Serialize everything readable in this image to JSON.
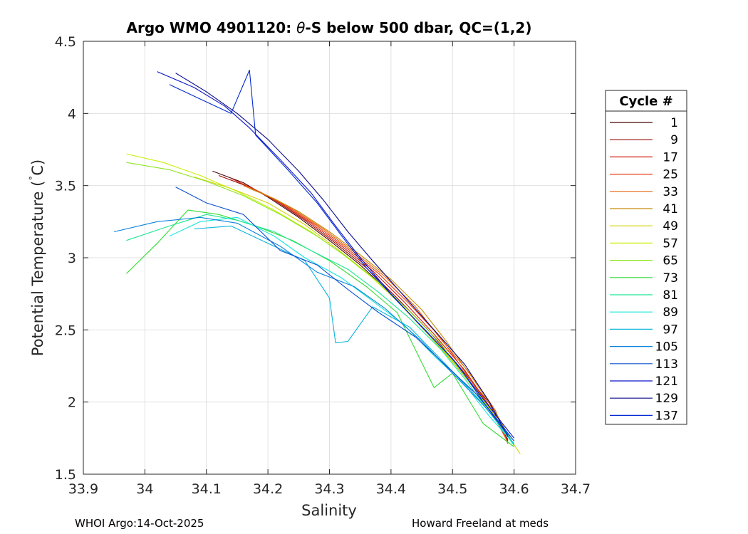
{
  "chart_data": {
    "type": "line",
    "title": "Argo WMO 4901120: θ-S below 500 dbar,  QC=(1,2)",
    "title_parts": {
      "prefix": "Argo WMO 4901120: ",
      "symbol": "θ",
      "suffix": "-S below 500 dbar,  QC=(1,2)"
    },
    "xlabel": "Salinity",
    "ylabel": "Potential Temperature (˚C)",
    "ylabel_parts": {
      "main": "Potential Temperature (",
      "degree": "˚",
      "unit": "C)"
    },
    "xlim": [
      33.9,
      34.7
    ],
    "ylim": [
      1.5,
      4.5
    ],
    "xticks": [
      33.9,
      34.0,
      34.1,
      34.2,
      34.3,
      34.4,
      34.5,
      34.6,
      34.7
    ],
    "xtick_labels": [
      "33.9",
      "34",
      "34.1",
      "34.2",
      "34.3",
      "34.4",
      "34.5",
      "34.6",
      "34.7"
    ],
    "yticks": [
      1.5,
      2.0,
      2.5,
      3.0,
      3.5,
      4.0,
      4.5
    ],
    "ytick_labels": [
      "1.5",
      "2",
      "2.5",
      "3",
      "3.5",
      "4",
      "4.5"
    ],
    "grid": true,
    "legend": {
      "title": "Cycle #",
      "placement": "outside-right",
      "entries": [
        {
          "label": "1",
          "color": "#4a0505"
        },
        {
          "label": "9",
          "color": "#9a0a0a"
        },
        {
          "label": "17",
          "color": "#d21c0c"
        },
        {
          "label": "25",
          "color": "#e83a0e"
        },
        {
          "label": "33",
          "color": "#e8640e"
        },
        {
          "label": "41",
          "color": "#c88c0e"
        },
        {
          "label": "49",
          "color": "#d2d20a"
        },
        {
          "label": "57",
          "color": "#c8f000"
        },
        {
          "label": "65",
          "color": "#8ce61e"
        },
        {
          "label": "73",
          "color": "#32dc32"
        },
        {
          "label": "81",
          "color": "#1ee696"
        },
        {
          "label": "89",
          "color": "#14e6dc"
        },
        {
          "label": "97",
          "color": "#0ab4dc"
        },
        {
          "label": "105",
          "color": "#0a82dc"
        },
        {
          "label": "113",
          "color": "#0a50d2"
        },
        {
          "label": "121",
          "color": "#0a14c8"
        },
        {
          "label": "129",
          "color": "#0a0a8c"
        },
        {
          "label": "137",
          "color": "#0028d2"
        }
      ]
    },
    "series": [
      {
        "name": "1",
        "color": "#4a0505",
        "points": [
          [
            34.11,
            3.6
          ],
          [
            34.16,
            3.52
          ],
          [
            34.2,
            3.42
          ],
          [
            34.25,
            3.28
          ],
          [
            34.3,
            3.12
          ],
          [
            34.35,
            2.95
          ],
          [
            34.4,
            2.75
          ],
          [
            34.45,
            2.52
          ],
          [
            34.5,
            2.28
          ],
          [
            34.55,
            2.02
          ],
          [
            34.59,
            1.74
          ]
        ]
      },
      {
        "name": "9",
        "color": "#9a0a0a",
        "points": [
          [
            34.12,
            3.57
          ],
          [
            34.17,
            3.49
          ],
          [
            34.21,
            3.4
          ],
          [
            34.26,
            3.26
          ],
          [
            34.31,
            3.1
          ],
          [
            34.36,
            2.93
          ],
          [
            34.41,
            2.72
          ],
          [
            34.46,
            2.5
          ],
          [
            34.51,
            2.25
          ],
          [
            34.56,
            1.99
          ],
          [
            34.59,
            1.73
          ]
        ]
      },
      {
        "name": "17",
        "color": "#d21c0c",
        "points": [
          [
            34.14,
            3.55
          ],
          [
            34.18,
            3.47
          ],
          [
            34.22,
            3.38
          ],
          [
            34.27,
            3.24
          ],
          [
            34.32,
            3.08
          ],
          [
            34.37,
            2.91
          ],
          [
            34.42,
            2.7
          ],
          [
            34.47,
            2.47
          ],
          [
            34.52,
            2.22
          ],
          [
            34.56,
            1.97
          ],
          [
            34.59,
            1.72
          ]
        ]
      },
      {
        "name": "25",
        "color": "#e83a0e",
        "points": [
          [
            34.15,
            3.53
          ],
          [
            34.19,
            3.45
          ],
          [
            34.23,
            3.36
          ],
          [
            34.28,
            3.22
          ],
          [
            34.33,
            3.06
          ],
          [
            34.38,
            2.89
          ],
          [
            34.43,
            2.68
          ],
          [
            34.48,
            2.45
          ],
          [
            34.52,
            2.21
          ],
          [
            34.56,
            1.96
          ],
          [
            34.59,
            1.72
          ]
        ]
      },
      {
        "name": "33",
        "color": "#e8640e",
        "points": [
          [
            34.16,
            3.5
          ],
          [
            34.2,
            3.43
          ],
          [
            34.24,
            3.34
          ],
          [
            34.29,
            3.2
          ],
          [
            34.34,
            3.04
          ],
          [
            34.39,
            2.87
          ],
          [
            34.44,
            2.66
          ],
          [
            34.48,
            2.44
          ],
          [
            34.53,
            2.19
          ],
          [
            34.57,
            1.94
          ],
          [
            34.59,
            1.71
          ]
        ]
      },
      {
        "name": "41",
        "color": "#c88c0e",
        "points": [
          [
            34.17,
            3.48
          ],
          [
            34.21,
            3.41
          ],
          [
            34.25,
            3.32
          ],
          [
            34.3,
            3.18
          ],
          [
            34.35,
            3.02
          ],
          [
            34.4,
            2.85
          ],
          [
            34.45,
            2.64
          ],
          [
            34.49,
            2.42
          ],
          [
            34.53,
            2.18
          ],
          [
            34.57,
            1.93
          ],
          [
            34.6,
            1.7
          ]
        ]
      },
      {
        "name": "49",
        "color": "#d2d20a",
        "points": [
          [
            34.08,
            3.56
          ],
          [
            34.14,
            3.48
          ],
          [
            34.2,
            3.38
          ],
          [
            34.26,
            3.23
          ],
          [
            34.31,
            3.07
          ],
          [
            34.36,
            2.9
          ],
          [
            34.41,
            2.7
          ],
          [
            34.46,
            2.47
          ],
          [
            34.51,
            2.23
          ],
          [
            34.56,
            1.96
          ],
          [
            34.61,
            1.64
          ]
        ]
      },
      {
        "name": "57",
        "color": "#c8f000",
        "points": [
          [
            33.97,
            3.72
          ],
          [
            34.03,
            3.66
          ],
          [
            34.09,
            3.57
          ],
          [
            34.15,
            3.46
          ],
          [
            34.21,
            3.33
          ],
          [
            34.27,
            3.18
          ],
          [
            34.32,
            3.03
          ],
          [
            34.37,
            2.86
          ],
          [
            34.42,
            2.66
          ],
          [
            34.47,
            2.43
          ],
          [
            34.52,
            2.19
          ],
          [
            34.56,
            1.95
          ],
          [
            34.6,
            1.7
          ]
        ]
      },
      {
        "name": "65",
        "color": "#8ce61e",
        "points": [
          [
            33.97,
            3.66
          ],
          [
            34.04,
            3.61
          ],
          [
            34.1,
            3.53
          ],
          [
            34.16,
            3.43
          ],
          [
            34.22,
            3.3
          ],
          [
            34.28,
            3.15
          ],
          [
            34.33,
            3.0
          ],
          [
            34.38,
            2.83
          ],
          [
            34.43,
            2.63
          ],
          [
            34.48,
            2.41
          ],
          [
            34.52,
            2.18
          ],
          [
            34.56,
            1.95
          ],
          [
            34.6,
            1.7
          ]
        ]
      },
      {
        "name": "73",
        "color": "#32dc32",
        "points": [
          [
            33.97,
            2.89
          ],
          [
            34.02,
            3.1
          ],
          [
            34.07,
            3.33
          ],
          [
            34.12,
            3.3
          ],
          [
            34.18,
            3.22
          ],
          [
            34.24,
            3.12
          ],
          [
            34.3,
            2.98
          ],
          [
            34.36,
            2.8
          ],
          [
            34.41,
            2.62
          ],
          [
            34.47,
            2.1
          ],
          [
            34.5,
            2.2
          ],
          [
            34.55,
            1.85
          ],
          [
            34.6,
            1.69
          ]
        ]
      },
      {
        "name": "81",
        "color": "#1ee696",
        "points": [
          [
            33.97,
            3.12
          ],
          [
            34.04,
            3.22
          ],
          [
            34.1,
            3.3
          ],
          [
            34.15,
            3.26
          ],
          [
            34.21,
            3.18
          ],
          [
            34.27,
            3.05
          ],
          [
            34.33,
            2.92
          ],
          [
            34.38,
            2.76
          ],
          [
            34.43,
            2.58
          ],
          [
            34.48,
            2.37
          ],
          [
            34.52,
            2.16
          ],
          [
            34.56,
            1.93
          ],
          [
            34.6,
            1.7
          ]
        ]
      },
      {
        "name": "89",
        "color": "#14e6dc",
        "points": [
          [
            34.04,
            3.15
          ],
          [
            34.09,
            3.25
          ],
          [
            34.15,
            3.28
          ],
          [
            34.21,
            3.15
          ],
          [
            34.26,
            3.0
          ],
          [
            34.32,
            2.86
          ],
          [
            34.37,
            2.7
          ],
          [
            34.42,
            2.54
          ],
          [
            34.47,
            2.32
          ],
          [
            34.52,
            2.12
          ],
          [
            34.56,
            1.9
          ],
          [
            34.6,
            1.71
          ]
        ]
      },
      {
        "name": "97",
        "color": "#0ab4dc",
        "points": [
          [
            34.08,
            3.2
          ],
          [
            34.14,
            3.22
          ],
          [
            34.2,
            3.1
          ],
          [
            34.26,
            2.98
          ],
          [
            34.3,
            2.72
          ],
          [
            34.31,
            2.41
          ],
          [
            34.33,
            2.42
          ],
          [
            34.37,
            2.66
          ],
          [
            34.43,
            2.52
          ],
          [
            34.48,
            2.3
          ],
          [
            34.53,
            2.08
          ],
          [
            34.57,
            1.88
          ],
          [
            34.6,
            1.71
          ]
        ]
      },
      {
        "name": "105",
        "color": "#0a82dc",
        "points": [
          [
            33.95,
            3.18
          ],
          [
            34.02,
            3.25
          ],
          [
            34.09,
            3.28
          ],
          [
            34.15,
            3.24
          ],
          [
            34.22,
            3.08
          ],
          [
            34.28,
            2.9
          ],
          [
            34.34,
            2.8
          ],
          [
            34.39,
            2.65
          ],
          [
            34.45,
            2.42
          ],
          [
            34.5,
            2.2
          ],
          [
            34.55,
            1.98
          ],
          [
            34.6,
            1.73
          ]
        ]
      },
      {
        "name": "113",
        "color": "#0a50d2",
        "points": [
          [
            34.05,
            3.49
          ],
          [
            34.1,
            3.38
          ],
          [
            34.16,
            3.3
          ],
          [
            34.22,
            3.05
          ],
          [
            34.28,
            2.95
          ],
          [
            34.33,
            2.78
          ],
          [
            34.38,
            2.62
          ],
          [
            34.44,
            2.45
          ],
          [
            34.49,
            2.25
          ],
          [
            34.54,
            2.05
          ],
          [
            34.58,
            1.84
          ],
          [
            34.6,
            1.73
          ]
        ]
      },
      {
        "name": "121",
        "color": "#0a14c8",
        "points": [
          [
            34.02,
            4.29
          ],
          [
            34.08,
            4.18
          ],
          [
            34.13,
            4.05
          ],
          [
            34.17,
            3.9
          ],
          [
            34.22,
            3.68
          ],
          [
            34.27,
            3.45
          ],
          [
            34.31,
            3.22
          ],
          [
            34.35,
            3.0
          ],
          [
            34.4,
            2.75
          ],
          [
            34.45,
            2.52
          ],
          [
            34.5,
            2.3
          ],
          [
            34.55,
            2.02
          ],
          [
            34.6,
            1.75
          ]
        ]
      },
      {
        "name": "129",
        "color": "#0a0a8c",
        "points": [
          [
            34.05,
            4.28
          ],
          [
            34.1,
            4.15
          ],
          [
            34.15,
            4.0
          ],
          [
            34.2,
            3.82
          ],
          [
            34.25,
            3.6
          ],
          [
            34.29,
            3.4
          ],
          [
            34.33,
            3.18
          ],
          [
            34.37,
            2.98
          ],
          [
            34.42,
            2.74
          ],
          [
            34.47,
            2.5
          ],
          [
            34.52,
            2.26
          ],
          [
            34.56,
            2.0
          ],
          [
            34.59,
            1.76
          ]
        ]
      },
      {
        "name": "137",
        "color": "#0028d2",
        "points": [
          [
            34.04,
            4.2
          ],
          [
            34.09,
            4.1
          ],
          [
            34.14,
            4.0
          ],
          [
            34.17,
            4.3
          ],
          [
            34.18,
            3.85
          ],
          [
            34.23,
            3.62
          ],
          [
            34.28,
            3.38
          ],
          [
            34.32,
            3.15
          ],
          [
            34.36,
            2.93
          ],
          [
            34.41,
            2.7
          ],
          [
            34.46,
            2.48
          ],
          [
            34.51,
            2.25
          ],
          [
            34.55,
            2.0
          ],
          [
            34.59,
            1.77
          ]
        ]
      }
    ]
  },
  "footer": {
    "left": "WHOI Argo:14-Oct-2025",
    "right": "Howard Freeland at meds"
  }
}
